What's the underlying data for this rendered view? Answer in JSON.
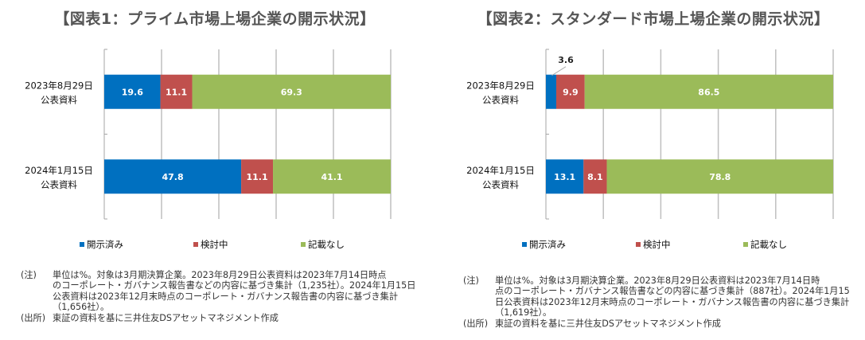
{
  "chart_data": [
    {
      "type": "bar",
      "orientation": "horizontal",
      "stacked": true,
      "title": "【図表1：プライム市場上場企業の開示状況】",
      "categories": [
        "2023年8月29日\n公表資料",
        "2024年1月15日\n公表資料"
      ],
      "category_lines": [
        [
          "2023年8月29日",
          "公表資料"
        ],
        [
          "2024年1月15日",
          "公表資料"
        ]
      ],
      "series": [
        {
          "name": "開示済み",
          "color": "#0070C0",
          "values": [
            19.6,
            47.8
          ],
          "labels": [
            "19.6",
            "47.8"
          ]
        },
        {
          "name": "検討中",
          "color": "#C0504D",
          "values": [
            11.1,
            11.1
          ],
          "labels": [
            "11.1",
            "11.1"
          ]
        },
        {
          "name": "記載なし",
          "color": "#9BBB59",
          "values": [
            69.3,
            41.1
          ],
          "labels": [
            "69.3",
            "41.1"
          ]
        }
      ],
      "xlim": [
        0,
        100
      ],
      "x_gridlines": [
        20,
        40,
        60,
        80,
        100
      ],
      "grid": true,
      "xlabel": "",
      "ylabel": "",
      "legend_position": "bottom",
      "notes": {
        "note_key": "(注)",
        "note_lines": [
          "単位は%。対象は3月期決算企業。2023年8月29日公表資料は2023年7月14日時点",
          "のコーポレート・ガバナンス報告書などの内容に基づき集計（1,235社）。2024年1月15日",
          "公表資料は2023年12月末時点のコーポレート・ガバナンス報告書の内容に基づき集計",
          "（1,656社）。"
        ],
        "source_key": "(出所)",
        "source_text": "東証の資料を基に三井住友DSアセットマネジメント作成"
      }
    },
    {
      "type": "bar",
      "orientation": "horizontal",
      "stacked": true,
      "title": "【図表2：スタンダード市場上場企業の開示状況】",
      "categories": [
        "2023年8月29日\n公表資料",
        "2024年1月15日\n公表資料"
      ],
      "category_lines": [
        [
          "2023年8月29日",
          "公表資料"
        ],
        [
          "2024年1月15日",
          "公表資料"
        ]
      ],
      "series": [
        {
          "name": "開示済み",
          "color": "#0070C0",
          "values": [
            3.6,
            13.1
          ],
          "labels": [
            "3.6",
            "13.1"
          ]
        },
        {
          "name": "検討中",
          "color": "#C0504D",
          "values": [
            9.9,
            8.1
          ],
          "labels": [
            "9.9",
            "8.1"
          ]
        },
        {
          "name": "記載なし",
          "color": "#9BBB59",
          "values": [
            86.5,
            78.8
          ],
          "labels": [
            "86.5",
            "78.8"
          ]
        }
      ],
      "callouts": [
        {
          "series": 0,
          "category": 0,
          "label": "3.6"
        }
      ],
      "xlim": [
        0,
        100
      ],
      "x_gridlines": [
        20,
        40,
        60,
        80,
        100
      ],
      "grid": true,
      "xlabel": "",
      "ylabel": "",
      "legend_position": "bottom",
      "notes": {
        "note_key": "(注)",
        "note_lines": [
          "単位は%。対象は3月期決算企業。2023年8月29日公表資料は2023年7月14日時",
          "点のコーポレート・ガバナンス報告書などの内容に基づき集計（887社）。2024年1月15",
          "日公表資料は2023年12月末時点のコーポレート・ガバナンス報告書の内容に基づき集計",
          "（1,619社）。"
        ],
        "source_key": "(出所)",
        "source_text": "東証の資料を基に三井住友DSアセットマネジメント作成"
      }
    }
  ]
}
